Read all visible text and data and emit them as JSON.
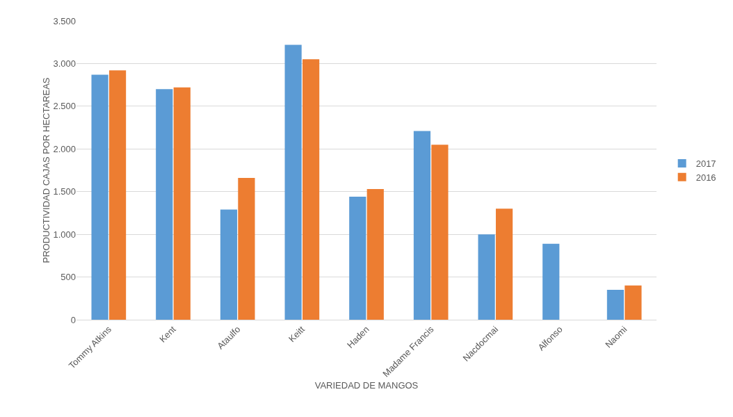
{
  "chart_data": {
    "type": "bar",
    "xlabel": "VARIEDAD DE MANGOS",
    "ylabel": "PRODUCTIVIDAD CAJAS POR HECTAREAS",
    "categories": [
      "Tommy Atkins",
      "Kent",
      "Ataulfo",
      "Keitt",
      "Haden",
      "Madame Francis",
      "Nacdocmai",
      "Alfonso",
      "Naomi"
    ],
    "series": [
      {
        "name": "2017",
        "color": "#5b9bd5",
        "values": [
          2870,
          2700,
          1290,
          3220,
          1440,
          2210,
          1000,
          890,
          350
        ]
      },
      {
        "name": "2016",
        "color": "#ed7d31",
        "values": [
          2920,
          2720,
          1660,
          3050,
          1530,
          2050,
          1300,
          null,
          400
        ]
      }
    ],
    "ylim": [
      0,
      3500
    ],
    "yticks": [
      0,
      {
        "value": 500,
        "label": "500"
      },
      {
        "value": 1000,
        "label": "1.000"
      },
      {
        "value": 1500,
        "label": "1.500"
      },
      {
        "value": 2000,
        "label": "2.000"
      },
      {
        "value": 2500,
        "label": "2.500"
      },
      {
        "value": 3000,
        "label": "3.000"
      },
      {
        "value": 3500,
        "label": "3.500"
      }
    ],
    "grid": "y",
    "legend": "right"
  }
}
